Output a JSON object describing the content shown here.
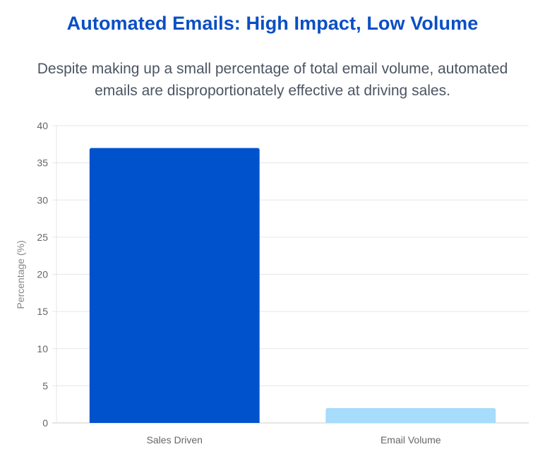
{
  "header": {
    "title": "Automated Emails: High Impact, Low Volume",
    "subtitle_lines": [
      "Despite making up a small percentage of total email volume, automated",
      "emails are disproportionately effective at driving sales."
    ]
  },
  "chart_data": {
    "type": "bar",
    "categories": [
      "Sales Driven",
      "Email Volume"
    ],
    "values": [
      37,
      2
    ],
    "colors": [
      "#0052cc",
      "#a6dcfc"
    ],
    "ylabel": "Percentage (%)",
    "ylim": [
      0,
      40
    ],
    "yticks": [
      0,
      5,
      10,
      15,
      20,
      25,
      30,
      35,
      40
    ],
    "grid": true,
    "legend": "none"
  }
}
